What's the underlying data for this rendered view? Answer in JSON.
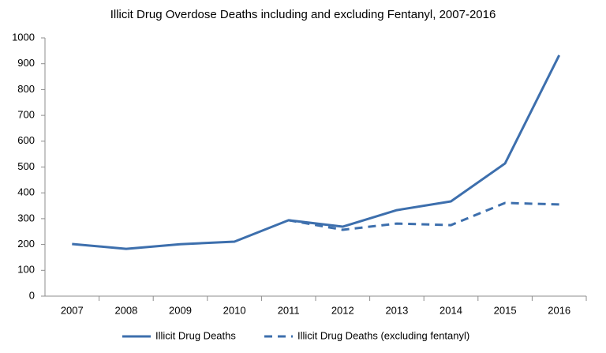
{
  "chart_data": {
    "type": "line",
    "title": "Illicit Drug Overdose Deaths including and excluding Fentanyl, 2007-2016",
    "categories": [
      "2007",
      "2008",
      "2009",
      "2010",
      "2011",
      "2012",
      "2013",
      "2014",
      "2015",
      "2016"
    ],
    "series": [
      {
        "name": "Illicit Drug Deaths",
        "color": "#3d6fad",
        "dash": false,
        "values": [
          202,
          183,
          201,
          211,
          294,
          269,
          333,
          367,
          514,
          933
        ]
      },
      {
        "name": "Illicit Drug Deaths (excluding fentanyl)",
        "color": "#3d6fad",
        "dash": true,
        "values": [
          null,
          null,
          null,
          null,
          294,
          257,
          281,
          275,
          361,
          355
        ]
      }
    ],
    "ylim": [
      0,
      1000
    ],
    "yticks": [
      0,
      100,
      200,
      300,
      400,
      500,
      600,
      700,
      800,
      900,
      1000
    ],
    "grid": false,
    "legend": "bottom"
  }
}
